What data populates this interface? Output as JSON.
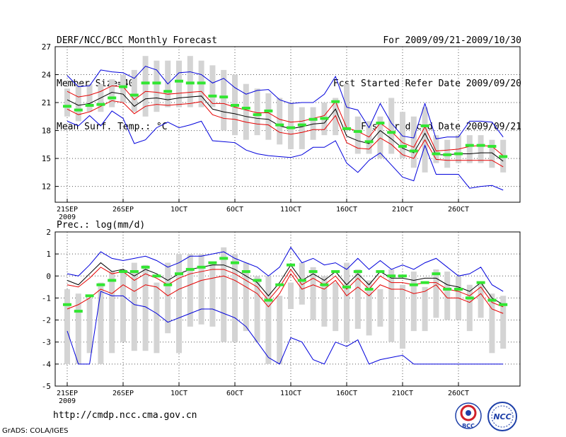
{
  "header": {
    "title": "DERF/NCC/BCC Monthly Forecast",
    "member_size": "Member Size=40",
    "variable_top": "Mean Surf. Temp.: °C",
    "period": "For 2009/09/21-2009/10/30",
    "refer_date": "Fcst Started Refer Date 2009/09/20",
    "produced_date": "Fcst Produced Date 2009/09/21"
  },
  "footer": {
    "url": "http://cmdp.ncc.cma.gov.cn",
    "credit": "GrADS: COLA/IGES",
    "logo_bcc": "BCC",
    "logo_ncc": "NCC"
  },
  "colors": {
    "box": "#d4d4d4",
    "median": "#32e632",
    "mean": "#000000",
    "std": "#e60000",
    "extreme": "#0000dc",
    "grid": "#555555"
  },
  "chart_data": [
    {
      "type": "box-plot ensemble",
      "title": "",
      "ylabel": "Mean Surf. Temp.: °C",
      "ylim": [
        10.3,
        27
      ],
      "yticks": [
        12,
        15,
        18,
        21,
        24,
        27
      ],
      "grid": true,
      "days": 40,
      "xticks": [
        {
          "day": 0,
          "label": "21SEP",
          "sub": "2009"
        },
        {
          "day": 5,
          "label": "26SEP"
        },
        {
          "day": 10,
          "label": "1OCT"
        },
        {
          "day": 15,
          "label": "6OCT"
        },
        {
          "day": 20,
          "label": "11OCT"
        },
        {
          "day": 25,
          "label": "16OCT"
        },
        {
          "day": 30,
          "label": "21OCT"
        },
        {
          "day": 35,
          "label": "26OCT"
        }
      ],
      "box_low": [
        19.5,
        19.0,
        20.0,
        20.0,
        20.5,
        21.0,
        20.0,
        19.5,
        20.0,
        20.5,
        20.5,
        20.5,
        20.5,
        20.5,
        18.0,
        17.5,
        17.0,
        17.5,
        17.0,
        16.5,
        16.0,
        16.0,
        17.0,
        17.5,
        17.5,
        18.0,
        15.5,
        15.5,
        15.0,
        15.5,
        15.0,
        14.0,
        13.5,
        14.5,
        14.0,
        14.5,
        14.5,
        14.5,
        14.0,
        13.5
      ],
      "box_high": [
        22.5,
        23.0,
        23.0,
        23.0,
        23.5,
        24.0,
        24.5,
        26.0,
        25.5,
        25.5,
        25.5,
        26.0,
        25.5,
        25.0,
        24.5,
        24.0,
        23.0,
        22.5,
        22.0,
        21.5,
        21.0,
        20.5,
        20.5,
        21.0,
        21.5,
        23.0,
        19.5,
        19.0,
        19.5,
        21.5,
        20.0,
        19.5,
        20.5,
        17.5,
        17.0,
        17.5,
        17.5,
        17.5,
        17.0,
        17.0
      ],
      "median": [
        20.6,
        20.2,
        20.7,
        20.8,
        21.5,
        22.7,
        21.8,
        23.1,
        23.1,
        22.2,
        23.3,
        23.1,
        23.1,
        21.7,
        21.6,
        20.7,
        20.4,
        19.7,
        20.1,
        18.6,
        18.3,
        18.6,
        19.2,
        19.3,
        21.1,
        18.2,
        17.9,
        16.8,
        18.8,
        17.8,
        16.3,
        15.8,
        18.5,
        15.5,
        15.4,
        15.5,
        16.4,
        16.4,
        16.3,
        15.2
      ],
      "mean": [
        21.3,
        20.7,
        20.9,
        21.5,
        22.1,
        21.9,
        20.6,
        21.4,
        21.5,
        21.3,
        21.5,
        21.6,
        21.7,
        20.3,
        20.0,
        19.8,
        19.5,
        19.3,
        19.2,
        18.5,
        18.2,
        18.4,
        18.7,
        18.8,
        20.3,
        17.4,
        16.9,
        16.6,
        18.0,
        17.1,
        16.1,
        15.6,
        17.7,
        15.4,
        15.4,
        15.5,
        15.5,
        15.6,
        15.6,
        14.7
      ],
      "std_high": [
        22.2,
        21.6,
        21.8,
        22.2,
        22.8,
        22.7,
        21.3,
        22.2,
        22.1,
        21.9,
        22.0,
        22.1,
        22.2,
        20.9,
        20.9,
        20.5,
        20.2,
        19.9,
        19.9,
        19.2,
        18.9,
        19.0,
        19.3,
        19.6,
        21.1,
        18.3,
        17.9,
        17.3,
        18.8,
        17.9,
        16.7,
        16.2,
        18.4,
        15.8,
        15.9,
        16.0,
        16.3,
        16.4,
        16.3,
        15.3
      ],
      "std_low": [
        20.3,
        19.7,
        20.0,
        20.6,
        21.2,
        21.0,
        19.8,
        20.6,
        20.8,
        20.7,
        20.8,
        20.9,
        21.1,
        19.7,
        19.3,
        19.2,
        18.9,
        18.7,
        18.6,
        17.8,
        17.6,
        17.8,
        18.1,
        18.1,
        19.6,
        16.7,
        16.1,
        16.0,
        17.2,
        16.5,
        15.4,
        15.0,
        17.0,
        14.9,
        14.8,
        14.8,
        14.8,
        14.8,
        14.8,
        14.1
      ],
      "max": [
        23.9,
        22.7,
        22.8,
        24.5,
        24.3,
        24.2,
        23.6,
        24.9,
        24.5,
        23.0,
        24.2,
        24.3,
        24.0,
        23.1,
        23.6,
        22.6,
        21.9,
        22.3,
        22.4,
        21.3,
        20.9,
        21.0,
        21.0,
        21.9,
        23.8,
        20.5,
        20.2,
        18.3,
        20.9,
        18.8,
        17.4,
        17.2,
        20.9,
        17.1,
        17.3,
        17.3,
        19.0,
        19.0,
        18.9,
        17.3
      ],
      "min": [
        19.0,
        18.5,
        19.6,
        18.5,
        20.1,
        19.3,
        16.6,
        17.0,
        18.3,
        18.9,
        18.3,
        18.6,
        19.0,
        16.9,
        16.8,
        16.7,
        15.9,
        15.5,
        15.3,
        15.2,
        15.1,
        15.4,
        16.2,
        16.2,
        16.9,
        14.5,
        13.5,
        14.8,
        15.6,
        14.3,
        13.0,
        12.6,
        16.4,
        13.3,
        13.3,
        13.3,
        11.8,
        12.0,
        12.1,
        11.6
      ]
    },
    {
      "type": "box-plot ensemble",
      "title": "",
      "ylabel": "Prec.: log(mm/d)",
      "ylim": [
        -5,
        2
      ],
      "yticks": [
        -5,
        -4,
        -3,
        -2,
        -1,
        0,
        1,
        2
      ],
      "grid": true,
      "days": 40,
      "xticks": [
        {
          "day": 0,
          "label": "21SEP",
          "sub": "2009"
        },
        {
          "day": 5,
          "label": "26SEP"
        },
        {
          "day": 10,
          "label": "1OCT"
        },
        {
          "day": 15,
          "label": "6OCT"
        },
        {
          "day": 20,
          "label": "11OCT"
        },
        {
          "day": 25,
          "label": "16OCT"
        },
        {
          "day": 30,
          "label": "21OCT"
        },
        {
          "day": 35,
          "label": "26OCT"
        }
      ],
      "box_low": [
        -4.0,
        -4.0,
        -3.5,
        -4.0,
        -3.5,
        -3.0,
        -3.4,
        -3.4,
        -3.5,
        -2.6,
        -3.5,
        -2.3,
        -2.2,
        -2.3,
        -3.0,
        -3.0,
        -2.5,
        -3.0,
        -4.0,
        -4.0,
        -1.5,
        -1.3,
        -2.0,
        -2.3,
        -2.5,
        -3.0,
        -2.4,
        -2.7,
        -2.3,
        -3.0,
        -3.3,
        -2.5,
        -2.5,
        -1.9,
        -2.0,
        -2.0,
        -2.5,
        -1.9,
        -3.5,
        -3.3
      ],
      "box_high": [
        -0.6,
        -0.8,
        -1.0,
        -0.3,
        0.2,
        0.3,
        0.6,
        0.5,
        -0.3,
        0.6,
        1.0,
        1.0,
        1.0,
        0.6,
        1.3,
        1.0,
        0.6,
        0.0,
        0.0,
        -0.9,
        -0.3,
        0.6,
        0.4,
        0.0,
        -0.3,
        0.6,
        0.3,
        -0.2,
        -0.6,
        0.3,
        -0.4,
        0.2,
        -0.5,
        0.3,
        0.2,
        0.0,
        -0.4,
        -0.3,
        -0.8,
        -0.9
      ],
      "median": [
        -1.3,
        -1.6,
        -0.9,
        -0.4,
        -0.2,
        0.2,
        0.2,
        0.4,
        0.0,
        -0.4,
        0.1,
        0.3,
        0.4,
        0.6,
        0.8,
        0.6,
        0.2,
        -0.2,
        -1.1,
        -0.4,
        0.5,
        -0.2,
        0.2,
        -0.4,
        0.2,
        -0.5,
        0.2,
        -0.6,
        0.2,
        0.0,
        0.0,
        -0.4,
        -0.3,
        0.1,
        -0.6,
        -0.6,
        -1.0,
        -0.3,
        -1.1,
        -1.3
      ],
      "mean": [
        -0.2,
        -0.4,
        0.1,
        0.6,
        0.2,
        0.3,
        0.0,
        0.3,
        0.1,
        -0.2,
        0.1,
        0.3,
        0.4,
        0.5,
        0.5,
        0.3,
        0.0,
        -0.3,
        -0.9,
        -0.3,
        0.5,
        -0.2,
        0.1,
        -0.2,
        0.2,
        -0.4,
        0.1,
        -0.4,
        0.2,
        -0.1,
        -0.1,
        -0.2,
        -0.1,
        -0.1,
        -0.4,
        -0.5,
        -0.7,
        -0.3,
        -1.0,
        -1.3
      ],
      "std_high": [
        -0.4,
        -0.5,
        -0.1,
        0.4,
        0.1,
        0.2,
        -0.2,
        0.1,
        -0.1,
        -0.4,
        -0.1,
        0.1,
        0.2,
        0.3,
        0.3,
        0.1,
        -0.2,
        -0.5,
        -1.1,
        -0.5,
        0.3,
        -0.4,
        -0.1,
        -0.4,
        0.0,
        -0.6,
        -0.1,
        -0.6,
        0.0,
        -0.3,
        -0.3,
        -0.4,
        -0.3,
        -0.3,
        -0.6,
        -0.7,
        -0.9,
        -0.5,
        -1.2,
        -1.4
      ],
      "std_low": [
        -1.5,
        -1.3,
        -1.0,
        -0.6,
        -0.8,
        -0.4,
        -0.7,
        -0.4,
        -0.5,
        -0.9,
        -0.6,
        -0.4,
        -0.2,
        -0.1,
        0.0,
        -0.2,
        -0.5,
        -0.8,
        -1.4,
        -0.8,
        0.1,
        -0.6,
        -0.4,
        -0.6,
        -0.2,
        -0.9,
        -0.5,
        -0.9,
        -0.4,
        -0.6,
        -0.6,
        -0.8,
        -0.7,
        -0.4,
        -1.0,
        -1.0,
        -1.2,
        -0.8,
        -1.5,
        -1.7
      ],
      "max": [
        0.1,
        0.0,
        0.5,
        1.1,
        0.8,
        0.7,
        0.8,
        0.9,
        0.7,
        0.4,
        0.6,
        0.9,
        0.9,
        1.0,
        1.1,
        0.8,
        0.6,
        0.4,
        0.0,
        0.4,
        1.3,
        0.6,
        0.8,
        0.5,
        0.6,
        0.3,
        0.8,
        0.3,
        0.7,
        0.3,
        0.5,
        0.3,
        0.6,
        0.8,
        0.4,
        0.0,
        0.1,
        0.4,
        -0.4,
        -0.7
      ],
      "min": [
        -2.5,
        -4.0,
        -4.0,
        -0.7,
        -0.9,
        -0.9,
        -1.3,
        -1.4,
        -1.7,
        -2.1,
        -1.9,
        -1.7,
        -1.5,
        -1.5,
        -1.7,
        -1.9,
        -2.3,
        -3.0,
        -3.7,
        -4.0,
        -2.8,
        -3.0,
        -3.8,
        -4.0,
        -3.0,
        -3.2,
        -2.9,
        -4.0,
        -3.8,
        -3.7,
        -3.6,
        -4.0,
        -4.0,
        -4.0,
        -4.0,
        -4.0,
        -4.0,
        -4.0,
        -4.0,
        -4.0
      ]
    }
  ]
}
